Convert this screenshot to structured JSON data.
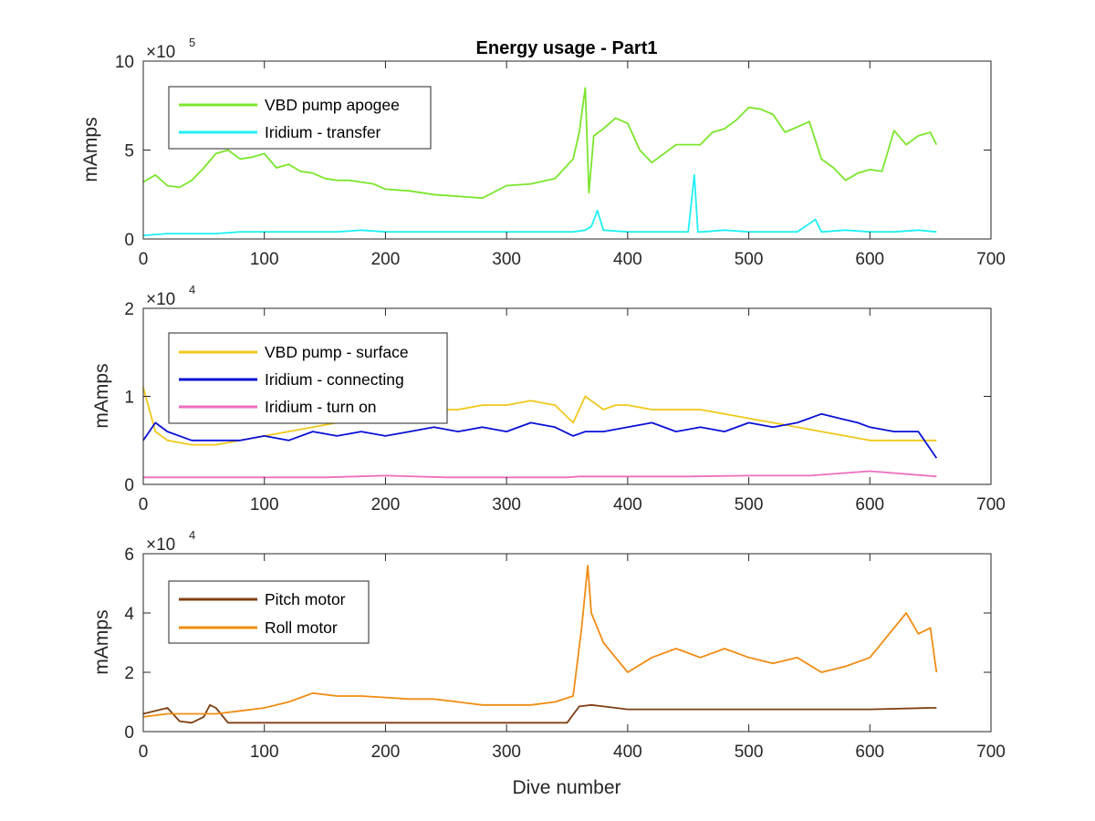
{
  "chart_data": [
    {
      "type": "line",
      "title": "Energy usage - Part1",
      "xlabel": "",
      "ylabel": "mAmps",
      "xlim": [
        0,
        700
      ],
      "ylim": [
        0,
        10
      ],
      "x_ticks": [
        "0",
        "100",
        "200",
        "300",
        "400",
        "500",
        "600",
        "700"
      ],
      "y_ticks": [
        "0",
        "5",
        "10"
      ],
      "y_multiplier": {
        "base": "×10",
        "exponent": "5"
      },
      "legend_position": "top-left",
      "series": [
        {
          "name": "VBD pump apogee",
          "color": "#7be52b",
          "x": [
            0,
            10,
            20,
            30,
            40,
            50,
            60,
            70,
            80,
            90,
            100,
            110,
            120,
            130,
            140,
            150,
            160,
            170,
            180,
            190,
            200,
            220,
            240,
            260,
            280,
            300,
            320,
            340,
            355,
            360,
            365,
            368,
            372,
            380,
            390,
            400,
            410,
            420,
            440,
            460,
            470,
            480,
            490,
            500,
            510,
            520,
            530,
            540,
            550,
            560,
            570,
            580,
            590,
            600,
            610,
            620,
            630,
            640,
            650,
            655
          ],
          "y": [
            3.2,
            3.6,
            3.0,
            2.9,
            3.3,
            4.0,
            4.8,
            5.0,
            4.5,
            4.6,
            4.8,
            4.0,
            4.2,
            3.8,
            3.7,
            3.4,
            3.3,
            3.3,
            3.2,
            3.1,
            2.8,
            2.7,
            2.5,
            2.4,
            2.3,
            3.0,
            3.1,
            3.4,
            4.5,
            6.0,
            8.5,
            2.6,
            5.8,
            6.2,
            6.8,
            6.5,
            5.0,
            4.3,
            5.3,
            5.3,
            6.0,
            6.2,
            6.7,
            7.4,
            7.3,
            7.0,
            6.0,
            6.3,
            6.6,
            4.5,
            4.0,
            3.3,
            3.7,
            3.9,
            3.8,
            6.1,
            5.3,
            5.8,
            6.0,
            5.3
          ]
        },
        {
          "name": "Iridium - transfer",
          "color": "#1ff0f5",
          "x": [
            0,
            20,
            40,
            60,
            80,
            100,
            120,
            140,
            160,
            180,
            200,
            220,
            240,
            260,
            280,
            300,
            320,
            340,
            355,
            365,
            370,
            375,
            380,
            400,
            420,
            440,
            450,
            455,
            458,
            462,
            480,
            500,
            520,
            540,
            555,
            560,
            580,
            600,
            620,
            640,
            655
          ],
          "y": [
            0.2,
            0.3,
            0.3,
            0.3,
            0.4,
            0.4,
            0.4,
            0.4,
            0.4,
            0.5,
            0.4,
            0.4,
            0.4,
            0.4,
            0.4,
            0.4,
            0.4,
            0.4,
            0.4,
            0.5,
            0.7,
            1.6,
            0.5,
            0.4,
            0.4,
            0.4,
            0.4,
            3.6,
            0.4,
            0.4,
            0.5,
            0.4,
            0.4,
            0.4,
            1.1,
            0.4,
            0.5,
            0.4,
            0.4,
            0.5,
            0.4
          ]
        }
      ]
    },
    {
      "type": "line",
      "title": "",
      "xlabel": "",
      "ylabel": "mAmps",
      "xlim": [
        0,
        700
      ],
      "ylim": [
        0,
        2
      ],
      "x_ticks": [
        "0",
        "100",
        "200",
        "300",
        "400",
        "500",
        "600",
        "700"
      ],
      "y_ticks": [
        "0",
        "1",
        "2"
      ],
      "y_multiplier": {
        "base": "×10",
        "exponent": "4"
      },
      "legend_position": "top-left",
      "series": [
        {
          "name": "VBD pump - surface",
          "color": "#f0c81a",
          "x": [
            0,
            10,
            20,
            40,
            60,
            80,
            100,
            120,
            140,
            160,
            180,
            200,
            220,
            240,
            260,
            280,
            300,
            320,
            340,
            355,
            365,
            370,
            380,
            390,
            400,
            420,
            440,
            460,
            480,
            500,
            520,
            540,
            560,
            580,
            600,
            620,
            640,
            655
          ],
          "y": [
            1.1,
            0.6,
            0.5,
            0.45,
            0.45,
            0.5,
            0.55,
            0.6,
            0.65,
            0.7,
            0.75,
            0.75,
            0.8,
            0.85,
            0.85,
            0.9,
            0.9,
            0.95,
            0.9,
            0.7,
            1.0,
            0.95,
            0.85,
            0.9,
            0.9,
            0.85,
            0.85,
            0.85,
            0.8,
            0.75,
            0.7,
            0.65,
            0.6,
            0.55,
            0.5,
            0.5,
            0.5,
            0.5
          ]
        },
        {
          "name": "Iridium - connecting",
          "color": "#0a10d6",
          "x": [
            0,
            10,
            20,
            40,
            60,
            80,
            100,
            120,
            140,
            160,
            180,
            200,
            220,
            240,
            260,
            280,
            300,
            320,
            340,
            355,
            365,
            380,
            400,
            420,
            440,
            460,
            480,
            500,
            520,
            540,
            550,
            560,
            575,
            590,
            600,
            620,
            640,
            655
          ],
          "y": [
            0.5,
            0.7,
            0.6,
            0.5,
            0.5,
            0.5,
            0.55,
            0.5,
            0.6,
            0.55,
            0.6,
            0.55,
            0.6,
            0.65,
            0.6,
            0.65,
            0.6,
            0.7,
            0.65,
            0.55,
            0.6,
            0.6,
            0.65,
            0.7,
            0.6,
            0.65,
            0.6,
            0.7,
            0.65,
            0.7,
            0.75,
            0.8,
            0.75,
            0.7,
            0.65,
            0.6,
            0.6,
            0.3
          ]
        },
        {
          "name": "Iridium - turn on",
          "color": "#ee6ebd",
          "x": [
            0,
            50,
            100,
            150,
            200,
            250,
            300,
            350,
            360,
            380,
            400,
            450,
            500,
            550,
            600,
            655
          ],
          "y": [
            0.08,
            0.08,
            0.08,
            0.08,
            0.1,
            0.08,
            0.08,
            0.08,
            0.09,
            0.09,
            0.09,
            0.09,
            0.1,
            0.1,
            0.15,
            0.09
          ]
        }
      ]
    },
    {
      "type": "line",
      "title": "",
      "xlabel": "Dive number",
      "ylabel": "mAmps",
      "xlim": [
        0,
        700
      ],
      "ylim": [
        0,
        6
      ],
      "x_ticks": [
        "0",
        "100",
        "200",
        "300",
        "400",
        "500",
        "600",
        "700"
      ],
      "y_ticks": [
        "0",
        "2",
        "4",
        "6"
      ],
      "y_multiplier": {
        "base": "×10",
        "exponent": "4"
      },
      "legend_position": "top-left",
      "series": [
        {
          "name": "Pitch motor",
          "color": "#7f3f12",
          "x": [
            0,
            10,
            20,
            30,
            40,
            50,
            55,
            60,
            70,
            100,
            150,
            200,
            250,
            300,
            350,
            360,
            370,
            380,
            400,
            450,
            500,
            550,
            600,
            650,
            655
          ],
          "y": [
            0.6,
            0.7,
            0.8,
            0.35,
            0.3,
            0.5,
            0.9,
            0.8,
            0.3,
            0.3,
            0.3,
            0.3,
            0.3,
            0.3,
            0.3,
            0.85,
            0.9,
            0.85,
            0.75,
            0.75,
            0.75,
            0.75,
            0.75,
            0.8,
            0.8
          ]
        },
        {
          "name": "Roll motor",
          "color": "#f08c13",
          "x": [
            0,
            20,
            40,
            60,
            80,
            100,
            120,
            140,
            160,
            180,
            200,
            220,
            240,
            260,
            280,
            300,
            320,
            340,
            355,
            362,
            367,
            370,
            380,
            390,
            400,
            420,
            440,
            460,
            480,
            500,
            520,
            540,
            560,
            580,
            600,
            620,
            630,
            640,
            650,
            655
          ],
          "y": [
            0.5,
            0.6,
            0.6,
            0.6,
            0.7,
            0.8,
            1.0,
            1.3,
            1.2,
            1.2,
            1.15,
            1.1,
            1.1,
            1.0,
            0.9,
            0.9,
            0.9,
            1.0,
            1.2,
            3.5,
            5.6,
            4.0,
            3.0,
            2.5,
            2.0,
            2.5,
            2.8,
            2.5,
            2.8,
            2.5,
            2.3,
            2.5,
            2.0,
            2.2,
            2.5,
            3.5,
            4.0,
            3.3,
            3.5,
            2.0
          ]
        }
      ]
    }
  ]
}
